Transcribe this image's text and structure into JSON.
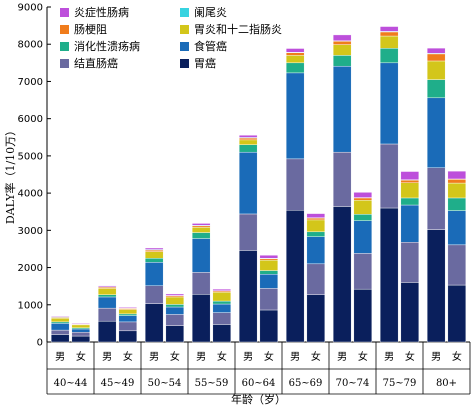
{
  "chart_data": {
    "type": "bar",
    "stacked": true,
    "ylabel": "DALY率（1/10万）",
    "xlabel": "年龄（岁）",
    "ylim": [
      0,
      9000
    ],
    "yticks": [
      0,
      1000,
      2000,
      3000,
      4000,
      5000,
      6000,
      7000,
      8000,
      9000
    ],
    "legend_position": "top-left",
    "age_groups": [
      "40~44",
      "45~49",
      "50~54",
      "55~59",
      "60~64",
      "65~69",
      "70~74",
      "75~79",
      "80+"
    ],
    "sexes": [
      "男",
      "女"
    ],
    "categories": [
      "40~44 男",
      "40~44 女",
      "45~49 男",
      "45~49 女",
      "50~54 男",
      "50~54 女",
      "55~59 男",
      "55~59 女",
      "60~64 男",
      "60~64 女",
      "65~69 男",
      "65~69 女",
      "70~74 男",
      "70~74 女",
      "75~79 男",
      "75~79 女",
      "80+ 男",
      "80+ 女"
    ],
    "series": [
      {
        "name": "胃癌",
        "color": "#0a1f5c",
        "values": [
          200,
          160,
          560,
          300,
          1030,
          440,
          1280,
          470,
          2460,
          860,
          3540,
          1270,
          3640,
          1420,
          3600,
          1600,
          3020,
          1530
        ]
      },
      {
        "name": "结直肠癌",
        "color": "#6a6aa0",
        "values": [
          120,
          100,
          350,
          240,
          480,
          300,
          590,
          320,
          980,
          580,
          1380,
          830,
          1460,
          960,
          1720,
          1080,
          1660,
          1080
        ]
      },
      {
        "name": "食管癌",
        "color": "#1a6bb8",
        "values": [
          180,
          90,
          300,
          170,
          630,
          200,
          910,
          230,
          1660,
          380,
          2310,
          730,
          2310,
          880,
          2180,
          1000,
          1880,
          920
        ]
      },
      {
        "name": "消化性溃疡病",
        "color": "#1fae8a",
        "values": [
          40,
          30,
          60,
          45,
          110,
          70,
          160,
          80,
          200,
          100,
          270,
          130,
          290,
          170,
          390,
          190,
          490,
          340
        ]
      },
      {
        "name": "胃炎和十二指肠炎",
        "color": "#d3c61a",
        "values": [
          100,
          80,
          170,
          120,
          180,
          200,
          140,
          240,
          130,
          280,
          200,
          320,
          290,
          380,
          330,
          410,
          500,
          400
        ]
      },
      {
        "name": "肠梗阻",
        "color": "#f07c1c",
        "values": [
          20,
          15,
          30,
          25,
          40,
          30,
          40,
          30,
          50,
          40,
          70,
          50,
          90,
          60,
          110,
          70,
          190,
          100
        ]
      },
      {
        "name": "阑尾炎",
        "color": "#37d3e0",
        "values": [
          15,
          10,
          15,
          10,
          15,
          10,
          15,
          10,
          15,
          10,
          15,
          10,
          15,
          10,
          15,
          10,
          15,
          10
        ]
      },
      {
        "name": "炎症性肠病",
        "color": "#bd4fdb",
        "values": [
          20,
          20,
          25,
          20,
          40,
          40,
          50,
          40,
          60,
          80,
          100,
          110,
          155,
          140,
          130,
          220,
          140,
          210
        ]
      }
    ],
    "legend_layout": [
      [
        "炎症性肠病",
        "阑尾炎"
      ],
      [
        "肠梗阻",
        "胃炎和十二指肠炎"
      ],
      [
        "消化性溃疡病",
        "食管癌"
      ],
      [
        "结直肠癌",
        "胃癌"
      ]
    ]
  }
}
